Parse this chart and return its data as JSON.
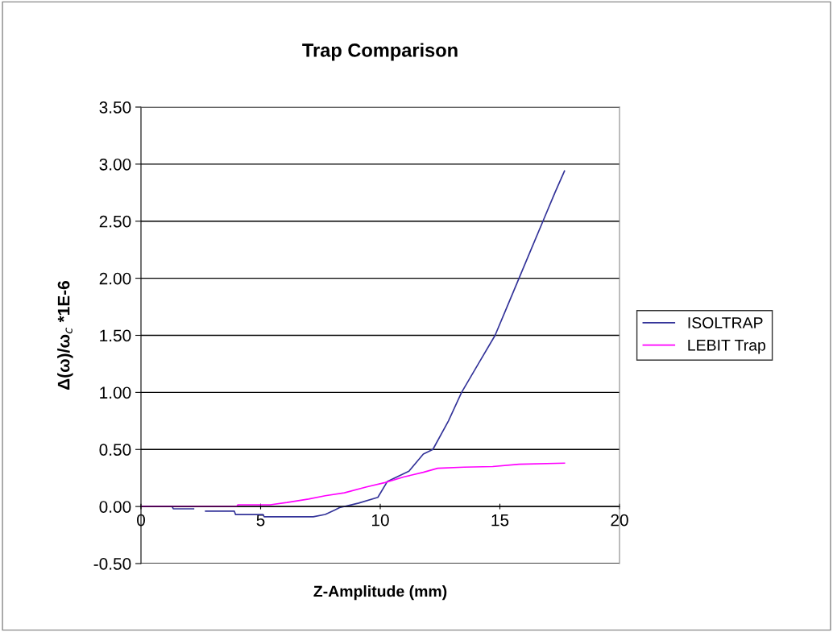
{
  "chart_data": {
    "type": "line",
    "title": "Trap Comparison",
    "xlabel": "Z-Amplitude (mm)",
    "ylabel": "Δ(ω)/ω$_{c}$ *1E-6",
    "xlim": [
      0,
      20
    ],
    "xticks": [
      0,
      5,
      10,
      15,
      20
    ],
    "ylim": [
      -0.5,
      3.5
    ],
    "yticks": [
      {
        "value": -0.5,
        "label": "-0.50"
      },
      {
        "value": 0,
        "label": "0.00"
      },
      {
        "value": 0.5,
        "label": "0.50"
      },
      {
        "value": 1.0,
        "label": "1.00"
      },
      {
        "value": 1.5,
        "label": "1.50"
      },
      {
        "value": 2.0,
        "label": "2.00"
      },
      {
        "value": 2.5,
        "label": "2.50"
      },
      {
        "value": 3.0,
        "label": "3.00"
      },
      {
        "value": 3.5,
        "label": "3.50"
      }
    ],
    "grid": "y",
    "legend": "right",
    "marker": "none",
    "series": [
      {
        "name": "ISOLTRAP",
        "color": "#333399",
        "x": [
          0,
          0.7,
          1.3,
          1.35,
          2.2,
          2.5,
          2.7,
          3.9,
          3.95,
          5.1,
          5.15,
          7.2,
          7.7,
          8.1,
          8.3,
          9.1,
          9.9,
          10.3,
          11.2,
          11.8,
          12.2,
          12.85,
          13.4,
          14.1,
          14.8,
          15.3,
          15.8,
          16.3,
          16.8,
          17.3,
          17.7
        ],
        "values": [
          0,
          0,
          0,
          -0.02,
          -0.02,
          null,
          -0.04,
          -0.04,
          -0.07,
          -0.07,
          -0.09,
          -0.09,
          -0.07,
          -0.03,
          -0.01,
          0.03,
          0.08,
          0.22,
          0.31,
          0.46,
          0.5,
          0.75,
          1.0,
          1.25,
          1.5,
          1.75,
          2.0,
          2.25,
          2.5,
          2.75,
          2.94
        ]
      },
      {
        "name": "LEBIT Trap",
        "color": "#ff00ff",
        "x": [
          0,
          4.0,
          4.05,
          5.4,
          6.1,
          7.0,
          7.7,
          8.5,
          9.4,
          10.2,
          11.0,
          11.8,
          12.4,
          13.5,
          14.7,
          15.8,
          17.7
        ],
        "values": [
          0,
          0,
          0.015,
          0.015,
          0.035,
          0.065,
          0.094,
          0.12,
          0.17,
          0.21,
          0.26,
          0.3,
          0.335,
          0.345,
          0.35,
          0.37,
          0.38
        ]
      }
    ]
  }
}
